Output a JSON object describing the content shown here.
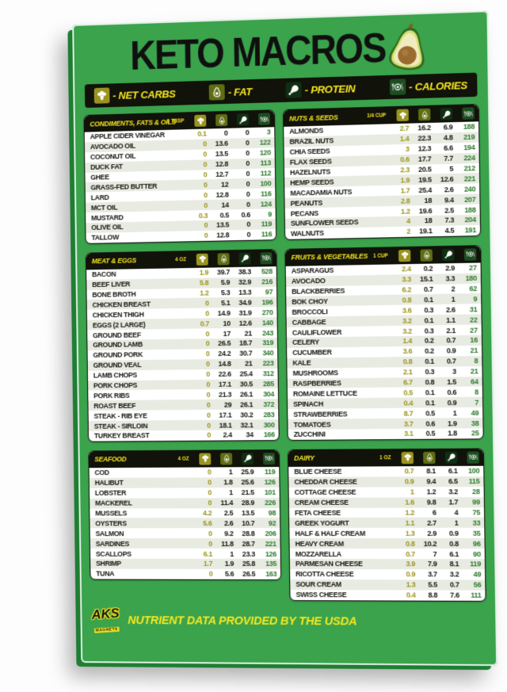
{
  "title": "KETO MACROS",
  "title_icon": "avocado-half-icon",
  "legend": [
    {
      "icon": "broccoli-icon",
      "label": "- NET CARBS"
    },
    {
      "icon": "avocado-icon",
      "label": "- FAT"
    },
    {
      "icon": "ham-icon",
      "label": "- PROTEIN"
    },
    {
      "icon": "plate-icon",
      "label": "- CALORIES"
    }
  ],
  "column_icons": [
    "broccoli-icon",
    "avocado-icon",
    "ham-icon",
    "plate-icon"
  ],
  "column_meanings": [
    "net carbs (g)",
    "fat (g)",
    "protein (g)",
    "calories"
  ],
  "colors": {
    "board_green": "#3aa34c",
    "edge_green": "#1e7e33",
    "header_black": "#111209",
    "accent_yellow": "#f6e71e",
    "netcarbs_text": "#9c941c",
    "calories_text": "#2c7a2c",
    "stripe": "#e8ebe1",
    "broccoli_box": "#9a941f",
    "avocado_box": "#5f6d13",
    "ham_box": "#0f2f12",
    "plate_box": "#1d4d20"
  },
  "footer": {
    "brand": "AKS",
    "brand_sub": "MAGNETS",
    "note": "NUTRIENT DATA PROVIDED BY THE USDA"
  },
  "tables": [
    {
      "id": "condiments",
      "title": "CONDIMENTS, FATS & OILS",
      "unit": "1 TBSP",
      "column": "left",
      "rows": [
        [
          "APPLE CIDER VINEGAR",
          "0.1",
          "0",
          "0",
          "3"
        ],
        [
          "AVOCADO OIL",
          "0",
          "13.6",
          "0",
          "122"
        ],
        [
          "COCONUT OIL",
          "0",
          "13.5",
          "0",
          "120"
        ],
        [
          "DUCK FAT",
          "0",
          "12.8",
          "0",
          "113"
        ],
        [
          "GHEE",
          "0",
          "12.7",
          "0",
          "112"
        ],
        [
          "GRASS-FED BUTTER",
          "0",
          "12",
          "0",
          "100"
        ],
        [
          "LARD",
          "0",
          "12.8",
          "0",
          "116"
        ],
        [
          "MCT OIL",
          "0",
          "14",
          "0",
          "124"
        ],
        [
          "MUSTARD",
          "0.3",
          "0.5",
          "0.6",
          "9"
        ],
        [
          "OLIVE OIL",
          "0",
          "13.5",
          "0",
          "119"
        ],
        [
          "TALLOW",
          "0",
          "12.8",
          "0",
          "116"
        ]
      ]
    },
    {
      "id": "nuts",
      "title": "NUTS & SEEDS",
      "unit": "1/4 CUP",
      "column": "right",
      "rows": [
        [
          "ALMONDS",
          "2.7",
          "16.2",
          "6.9",
          "188"
        ],
        [
          "BRAZIL NUTS",
          "1.4",
          "22.3",
          "4.8",
          "219"
        ],
        [
          "CHIA SEEDS",
          "3",
          "12.3",
          "6.6",
          "194"
        ],
        [
          "FLAX SEEDS",
          "0.6",
          "17.7",
          "7.7",
          "224"
        ],
        [
          "HAZELNUTS",
          "2.3",
          "20.5",
          "5",
          "212"
        ],
        [
          "HEMP SEEDS",
          "1.9",
          "19.5",
          "12.6",
          "221"
        ],
        [
          "MACADAMIA NUTS",
          "1.7",
          "25.4",
          "2.6",
          "240"
        ],
        [
          "PEANUTS",
          "2.8",
          "18",
          "9.4",
          "207"
        ],
        [
          "PECANS",
          "1.2",
          "19.6",
          "2.5",
          "188"
        ],
        [
          "SUNFLOWER SEEDS",
          "4",
          "18",
          "7.3",
          "204"
        ],
        [
          "WALNUTS",
          "2",
          "19.1",
          "4.5",
          "191"
        ]
      ]
    },
    {
      "id": "meat",
      "title": "MEAT & EGGS",
      "unit": "4 OZ",
      "column": "left",
      "rows": [
        [
          "BACON",
          "1.9",
          "39.7",
          "38.3",
          "528"
        ],
        [
          "BEEF LIVER",
          "5.8",
          "5.9",
          "32.9",
          "216"
        ],
        [
          "BONE BROTH",
          "1.2",
          "5.3",
          "13.3",
          "97"
        ],
        [
          "CHICKEN BREAST",
          "0",
          "5.1",
          "34.9",
          "196"
        ],
        [
          "CHICKEN THIGH",
          "0",
          "14.9",
          "31.9",
          "270"
        ],
        [
          "EGGS (2 LARGE)",
          "0.7",
          "10",
          "12.6",
          "140"
        ],
        [
          "GROUND BEEF",
          "0",
          "17",
          "21",
          "243"
        ],
        [
          "GROUND LAMB",
          "0",
          "26.5",
          "18.7",
          "319"
        ],
        [
          "GROUND PORK",
          "0",
          "24.2",
          "30.7",
          "340"
        ],
        [
          "GROUND VEAL",
          "0",
          "14.8",
          "21",
          "223"
        ],
        [
          "LAMB CHOPS",
          "0",
          "22.6",
          "25.4",
          "312"
        ],
        [
          "PORK CHOPS",
          "0",
          "17.1",
          "30.5",
          "285"
        ],
        [
          "PORK RIBS",
          "0",
          "21.3",
          "26.1",
          "304"
        ],
        [
          "ROAST BEEF",
          "0",
          "29",
          "26.1",
          "372"
        ],
        [
          "STEAK - RIB EYE",
          "0",
          "17.1",
          "30.2",
          "283"
        ],
        [
          "STEAK - SIRLOIN",
          "0",
          "18.1",
          "32.1",
          "300"
        ],
        [
          "TURKEY BREAST",
          "0",
          "2.4",
          "34",
          "166"
        ]
      ]
    },
    {
      "id": "fruits",
      "title": "FRUITS & VEGETABLES",
      "unit": "1 CUP",
      "column": "right",
      "rows": [
        [
          "ASPARAGUS",
          "2.4",
          "0.2",
          "2.9",
          "27"
        ],
        [
          "AVOCADO",
          "3.3",
          "15.1",
          "3.3",
          "180"
        ],
        [
          "BLACKBERRIES",
          "6.2",
          "0.7",
          "2",
          "62"
        ],
        [
          "BOK CHOY",
          "0.8",
          "0.1",
          "1",
          "9"
        ],
        [
          "BROCCOLI",
          "3.6",
          "0.3",
          "2.6",
          "31"
        ],
        [
          "CABBAGE",
          "3.2",
          "0.1",
          "1.1",
          "22"
        ],
        [
          "CAULIFLOWER",
          "3.2",
          "0.3",
          "2.1",
          "27"
        ],
        [
          "CELERY",
          "1.4",
          "0.2",
          "0.7",
          "16"
        ],
        [
          "CUCUMBER",
          "3.6",
          "0.2",
          "0.9",
          "21"
        ],
        [
          "KALE",
          "0.8",
          "0.1",
          "0.7",
          "8"
        ],
        [
          "MUSHROOMS",
          "2.1",
          "0.3",
          "3",
          "21"
        ],
        [
          "RASPBERRIES",
          "6.7",
          "0.8",
          "1.5",
          "64"
        ],
        [
          "ROMAINE LETTUCE",
          "0.5",
          "0.1",
          "0.6",
          "8"
        ],
        [
          "SPINACH",
          "0.4",
          "0.1",
          "0.9",
          "7"
        ],
        [
          "STRAWBERRIES",
          "8.7",
          "0.5",
          "1",
          "49"
        ],
        [
          "TOMATOES",
          "3.7",
          "0.6",
          "1.9",
          "38"
        ],
        [
          "ZUCCHINI",
          "3.1",
          "0.5",
          "1.8",
          "25"
        ]
      ]
    },
    {
      "id": "seafood",
      "title": "SEAFOOD",
      "unit": "4 OZ",
      "column": "left",
      "rows": [
        [
          "COD",
          "0",
          "1",
          "25.9",
          "119"
        ],
        [
          "HALIBUT",
          "0",
          "1.8",
          "25.6",
          "126"
        ],
        [
          "LOBSTER",
          "0",
          "1",
          "21.5",
          "101"
        ],
        [
          "MACKEREL",
          "0",
          "11.4",
          "28.9",
          "226"
        ],
        [
          "MUSSELS",
          "4.2",
          "2.5",
          "13.5",
          "98"
        ],
        [
          "OYSTERS",
          "5.6",
          "2.6",
          "10.7",
          "92"
        ],
        [
          "SALMON",
          "0",
          "9.2",
          "28.8",
          "206"
        ],
        [
          "SARDINES",
          "0",
          "11.8",
          "28.7",
          "221"
        ],
        [
          "SCALLOPS",
          "6.1",
          "1",
          "23.3",
          "126"
        ],
        [
          "SHRIMP",
          "1.7",
          "1.9",
          "25.8",
          "135"
        ],
        [
          "TUNA",
          "0",
          "5.6",
          "26.5",
          "163"
        ]
      ]
    },
    {
      "id": "dairy",
      "title": "DAIRY",
      "unit": "1 OZ",
      "column": "right",
      "rows": [
        [
          "BLUE CHEESE",
          "0.7",
          "8.1",
          "6.1",
          "100"
        ],
        [
          "CHEDDAR CHEESE",
          "0.9",
          "9.4",
          "6.5",
          "115"
        ],
        [
          "COTTAGE CHEESE",
          "1",
          "1.2",
          "3.2",
          "28"
        ],
        [
          "CREAM CHEESE",
          "1.6",
          "9.8",
          "1.7",
          "99"
        ],
        [
          "FETA CHEESE",
          "1.2",
          "6",
          "4",
          "75"
        ],
        [
          "GREEK YOGURT",
          "1.1",
          "2.7",
          "1",
          "33"
        ],
        [
          "HALF & HALF CREAM",
          "1.3",
          "2.9",
          "0.9",
          "35"
        ],
        [
          "HEAVY CREAM",
          "0.8",
          "10.2",
          "0.8",
          "96"
        ],
        [
          "MOZZARELLA",
          "0.7",
          "7",
          "6.1",
          "90"
        ],
        [
          "PARMESAN CHEESE",
          "3.9",
          "7.9",
          "8.1",
          "119"
        ],
        [
          "RICOTTA CHEESE",
          "0.9",
          "3.7",
          "3.2",
          "49"
        ],
        [
          "SOUR CREAM",
          "1.3",
          "5.5",
          "0.7",
          "56"
        ],
        [
          "SWISS CHEESE",
          "0.4",
          "8.8",
          "7.6",
          "111"
        ]
      ]
    }
  ]
}
